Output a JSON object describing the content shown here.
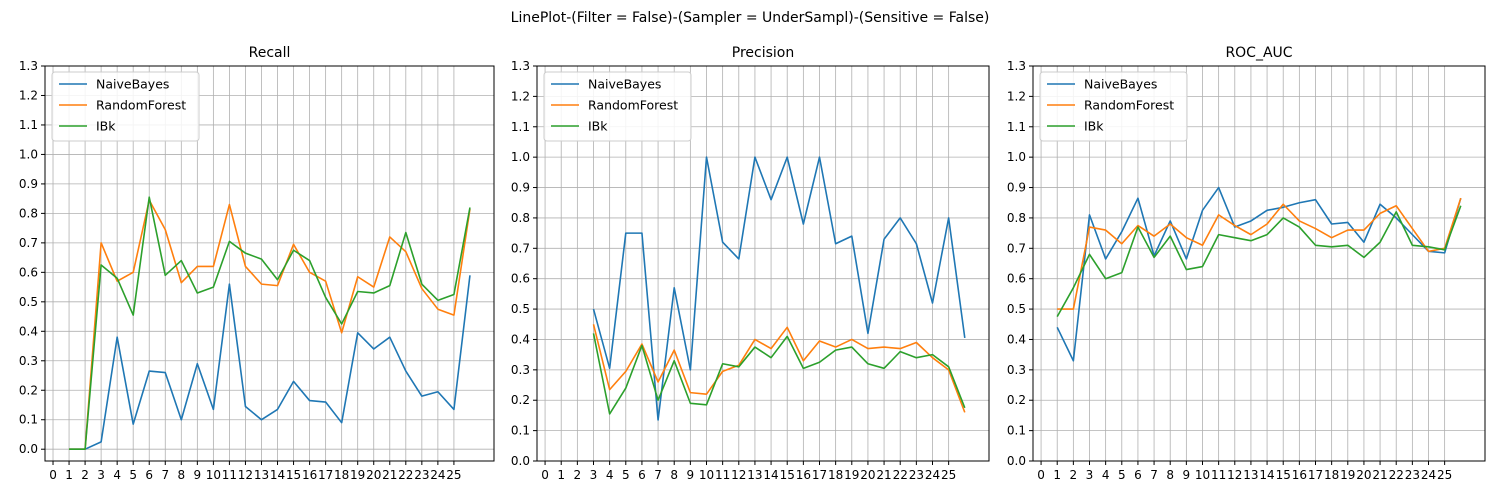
{
  "figure_title": "LinePlot-(Filter = False)-(Sampler = UnderSampl)-(Sensitive = False)",
  "colors": {
    "NaiveBayes": "#1f77b4",
    "RandomForest": "#ff7f0e",
    "IBk": "#2ca02c",
    "grid": "#b0b0b0",
    "axis": "#000000"
  },
  "chart_data": [
    {
      "type": "line",
      "title": "Recall",
      "xlabel": "",
      "ylabel": "",
      "x_ticks": [
        0,
        1,
        2,
        3,
        4,
        5,
        6,
        7,
        8,
        9,
        10,
        11,
        12,
        13,
        14,
        15,
        16,
        17,
        18,
        19,
        20,
        21,
        22,
        23,
        24,
        25
      ],
      "xlim": [
        -0.5,
        27.5
      ],
      "ylim": [
        -0.04,
        1.3
      ],
      "y_ticks": [
        0.0,
        0.1,
        0.2,
        0.3,
        0.4,
        0.5,
        0.6,
        0.7,
        0.8,
        0.9,
        1.0,
        1.1,
        1.2,
        1.3
      ],
      "grid": true,
      "legend": "top-left",
      "x": [
        1,
        2,
        3,
        4,
        5,
        6,
        7,
        8,
        9,
        10,
        11,
        12,
        13,
        14,
        15,
        16,
        17,
        18,
        19,
        20,
        21,
        22,
        23,
        24,
        25,
        26
      ],
      "series": [
        {
          "name": "NaiveBayes",
          "values": [
            0.0,
            0.0,
            0.025,
            0.38,
            0.085,
            0.265,
            0.26,
            0.1,
            0.29,
            0.135,
            0.56,
            0.145,
            0.1,
            0.135,
            0.23,
            0.165,
            0.16,
            0.09,
            0.395,
            0.34,
            0.38,
            0.265,
            0.18,
            0.195,
            0.135,
            0.59
          ]
        },
        {
          "name": "RandomForest",
          "values": [
            0.0,
            0.0,
            0.7,
            0.57,
            0.6,
            0.845,
            0.745,
            0.565,
            0.62,
            0.62,
            0.83,
            0.62,
            0.56,
            0.555,
            0.695,
            0.6,
            0.57,
            0.395,
            0.585,
            0.55,
            0.72,
            0.67,
            0.545,
            0.475,
            0.455,
            0.815
          ]
        },
        {
          "name": "IBk",
          "values": [
            0.0,
            0.0,
            0.625,
            0.58,
            0.455,
            0.855,
            0.59,
            0.64,
            0.53,
            0.55,
            0.705,
            0.665,
            0.645,
            0.575,
            0.675,
            0.64,
            0.515,
            0.425,
            0.535,
            0.53,
            0.555,
            0.735,
            0.56,
            0.505,
            0.525,
            0.82
          ]
        }
      ]
    },
    {
      "type": "line",
      "title": "Precision",
      "xlabel": "",
      "ylabel": "",
      "x_ticks": [
        0,
        1,
        2,
        3,
        4,
        5,
        6,
        7,
        8,
        9,
        10,
        11,
        12,
        13,
        14,
        15,
        16,
        17,
        18,
        19,
        20,
        21,
        22,
        23,
        24,
        25
      ],
      "xlim": [
        -0.5,
        27.5
      ],
      "ylim": [
        0.0,
        1.3
      ],
      "y_ticks": [
        0.0,
        0.1,
        0.2,
        0.3,
        0.4,
        0.5,
        0.6,
        0.7,
        0.8,
        0.9,
        1.0,
        1.1,
        1.2,
        1.3
      ],
      "grid": true,
      "legend": "top-left",
      "x": [
        3,
        4,
        5,
        6,
        7,
        8,
        9,
        10,
        11,
        12,
        13,
        14,
        15,
        16,
        17,
        18,
        19,
        20,
        21,
        22,
        23,
        24,
        25,
        26
      ],
      "series": [
        {
          "name": "NaiveBayes",
          "values": [
            0.5,
            0.305,
            0.75,
            0.75,
            0.135,
            0.57,
            0.3,
            1.0,
            0.72,
            0.665,
            1.0,
            0.86,
            1.0,
            0.78,
            1.0,
            0.715,
            0.74,
            0.42,
            0.73,
            0.8,
            0.715,
            0.52,
            0.8,
            0.405
          ]
        },
        {
          "name": "RandomForest",
          "values": [
            0.45,
            0.235,
            0.295,
            0.385,
            0.26,
            0.365,
            0.225,
            0.22,
            0.295,
            0.315,
            0.4,
            0.37,
            0.44,
            0.33,
            0.395,
            0.375,
            0.4,
            0.37,
            0.375,
            0.37,
            0.39,
            0.34,
            0.3,
            0.16
          ]
        },
        {
          "name": "IBk",
          "values": [
            0.42,
            0.155,
            0.24,
            0.38,
            0.2,
            0.33,
            0.19,
            0.185,
            0.32,
            0.31,
            0.375,
            0.34,
            0.41,
            0.305,
            0.325,
            0.365,
            0.375,
            0.32,
            0.305,
            0.36,
            0.34,
            0.35,
            0.31,
            0.175
          ]
        }
      ]
    },
    {
      "type": "line",
      "title": "ROC_AUC",
      "xlabel": "",
      "ylabel": "",
      "x_ticks": [
        0,
        1,
        2,
        3,
        4,
        5,
        6,
        7,
        8,
        9,
        10,
        11,
        12,
        13,
        14,
        15,
        16,
        17,
        18,
        19,
        20,
        21,
        22,
        23,
        24,
        25
      ],
      "xlim": [
        -0.5,
        27.5
      ],
      "ylim": [
        0.0,
        1.3
      ],
      "y_ticks": [
        0.0,
        0.1,
        0.2,
        0.3,
        0.4,
        0.5,
        0.6,
        0.7,
        0.8,
        0.9,
        1.0,
        1.1,
        1.2,
        1.3
      ],
      "grid": true,
      "legend": "top-left",
      "x": [
        1,
        2,
        3,
        4,
        5,
        6,
        7,
        8,
        9,
        10,
        11,
        12,
        13,
        14,
        15,
        16,
        17,
        18,
        19,
        20,
        21,
        22,
        23,
        24,
        25,
        26
      ],
      "series": [
        {
          "name": "NaiveBayes",
          "values": [
            0.44,
            0.33,
            0.81,
            0.665,
            0.755,
            0.865,
            0.675,
            0.79,
            0.665,
            0.825,
            0.9,
            0.77,
            0.79,
            0.825,
            0.835,
            0.85,
            0.86,
            0.78,
            0.785,
            0.72,
            0.845,
            0.8,
            0.745,
            0.69,
            0.685,
            0.865
          ]
        },
        {
          "name": "RandomForest",
          "values": [
            0.5,
            0.5,
            0.77,
            0.76,
            0.715,
            0.775,
            0.74,
            0.78,
            0.735,
            0.71,
            0.81,
            0.775,
            0.745,
            0.78,
            0.845,
            0.79,
            0.765,
            0.735,
            0.76,
            0.76,
            0.815,
            0.84,
            0.765,
            0.69,
            0.7,
            0.865
          ]
        },
        {
          "name": "IBk",
          "values": [
            0.475,
            0.57,
            0.68,
            0.6,
            0.62,
            0.77,
            0.67,
            0.74,
            0.63,
            0.64,
            0.745,
            0.735,
            0.725,
            0.745,
            0.8,
            0.77,
            0.71,
            0.705,
            0.71,
            0.67,
            0.72,
            0.82,
            0.71,
            0.705,
            0.695,
            0.84
          ]
        }
      ]
    }
  ]
}
